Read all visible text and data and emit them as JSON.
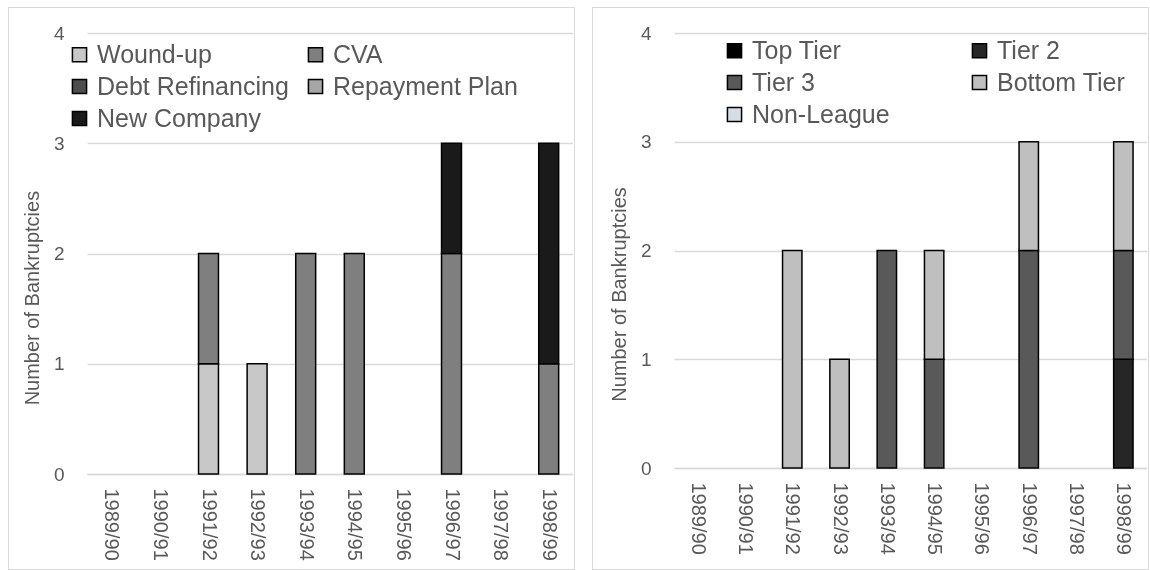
{
  "chart_data": [
    {
      "type": "bar",
      "stacked": true,
      "ylabel": "Number of Bankruptcies",
      "categories": [
        "1989/90",
        "1990/91",
        "1991/92",
        "1992/93",
        "1993/94",
        "1994/95",
        "1995/96",
        "1996/97",
        "1997/98",
        "1998/99"
      ],
      "series": [
        {
          "name": "Wound-up",
          "color": "#c8c8c8",
          "values": [
            null,
            null,
            1,
            1,
            null,
            null,
            null,
            null,
            null,
            null
          ]
        },
        {
          "name": "CVA",
          "color": "#7f7f7f",
          "values": [
            null,
            null,
            1,
            null,
            2,
            2,
            null,
            2,
            null,
            1
          ]
        },
        {
          "name": "Debt Refinancing",
          "color": "#4d4d4d",
          "values": [
            null,
            null,
            null,
            null,
            null,
            null,
            null,
            null,
            null,
            null
          ]
        },
        {
          "name": "Repayment Plan",
          "color": "#a6a6a6",
          "values": [
            null,
            null,
            null,
            null,
            null,
            null,
            null,
            null,
            null,
            null
          ]
        },
        {
          "name": "New Company",
          "color": "#1a1a1a",
          "values": [
            null,
            null,
            null,
            null,
            null,
            null,
            null,
            1,
            null,
            2
          ]
        }
      ],
      "ylim": [
        0,
        4
      ],
      "yticks": [
        0,
        1,
        2,
        3,
        4
      ],
      "grid": "y",
      "legend": "top left"
    },
    {
      "type": "bar",
      "stacked": true,
      "ylabel": "Number of Bankruptcies",
      "categories": [
        "1989/90",
        "1990/91",
        "1991/92",
        "1992/93",
        "1993/94",
        "1994/95",
        "1995/96",
        "1996/97",
        "1997/98",
        "1998/99"
      ],
      "series": [
        {
          "name": "Top Tier",
          "color": "#000000",
          "values": [
            null,
            null,
            null,
            null,
            null,
            null,
            null,
            null,
            null,
            null
          ]
        },
        {
          "name": "Tier 2",
          "color": "#262626",
          "values": [
            null,
            null,
            null,
            null,
            null,
            null,
            null,
            null,
            null,
            1
          ]
        },
        {
          "name": "Tier 3",
          "color": "#595959",
          "values": [
            null,
            null,
            null,
            null,
            2,
            1,
            null,
            2,
            null,
            1
          ]
        },
        {
          "name": "Bottom Tier",
          "color": "#bfbfbf",
          "values": [
            null,
            null,
            2,
            1,
            null,
            1,
            null,
            1,
            null,
            1
          ]
        },
        {
          "name": "Non-League",
          "color": "#d6dce5",
          "values": [
            null,
            null,
            null,
            null,
            null,
            null,
            null,
            null,
            null,
            null
          ]
        }
      ],
      "ylim": [
        0,
        4
      ],
      "yticks": [
        0,
        1,
        2,
        3,
        4
      ],
      "grid": "y",
      "legend": "top left"
    }
  ]
}
